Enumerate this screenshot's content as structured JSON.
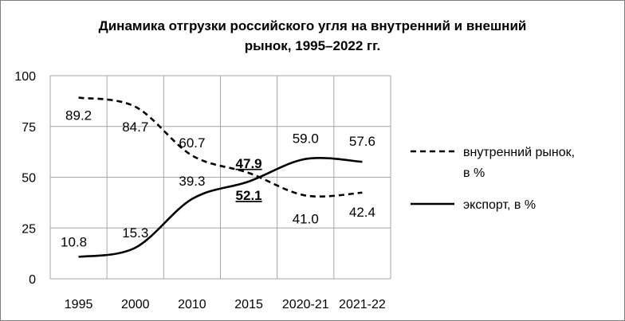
{
  "chart_data": {
    "type": "line",
    "title_lines": [
      "Динамика отгрузки российского угля на внутренний и внешний",
      "рынок, 1995–2022 гг."
    ],
    "categories": [
      "1995",
      "2000",
      "2010",
      "2015",
      "2020-21",
      "2021-22"
    ],
    "ylim": [
      0,
      100
    ],
    "yticks": [
      "0",
      "25",
      "50",
      "75",
      "100"
    ],
    "grid": true,
    "legend_position": "right",
    "series": [
      {
        "name": "внутренний рынок, в %",
        "legend_lines": [
          "внутренний рынок,",
          "в %"
        ],
        "line_style": "dashed",
        "values": [
          89.2,
          84.7,
          60.7,
          52.1,
          41.0,
          42.4
        ],
        "labels": [
          "89.2",
          "84.7",
          "60.7",
          "52.1",
          "41.0",
          "42.4"
        ]
      },
      {
        "name": "экспорт, в %",
        "legend_lines": [
          "экспорт, в %"
        ],
        "line_style": "solid",
        "values": [
          10.8,
          15.3,
          39.3,
          47.9,
          59.0,
          57.6
        ],
        "labels": [
          "10.8",
          "15.3",
          "39.3",
          "47.9",
          "59.0",
          "57.6"
        ]
      }
    ],
    "emphasized_labels": [
      "52.1",
      "47.9"
    ],
    "colors": {
      "line": "#000000",
      "grid": "#a6a6a6",
      "border": "#7f7f7f"
    }
  }
}
